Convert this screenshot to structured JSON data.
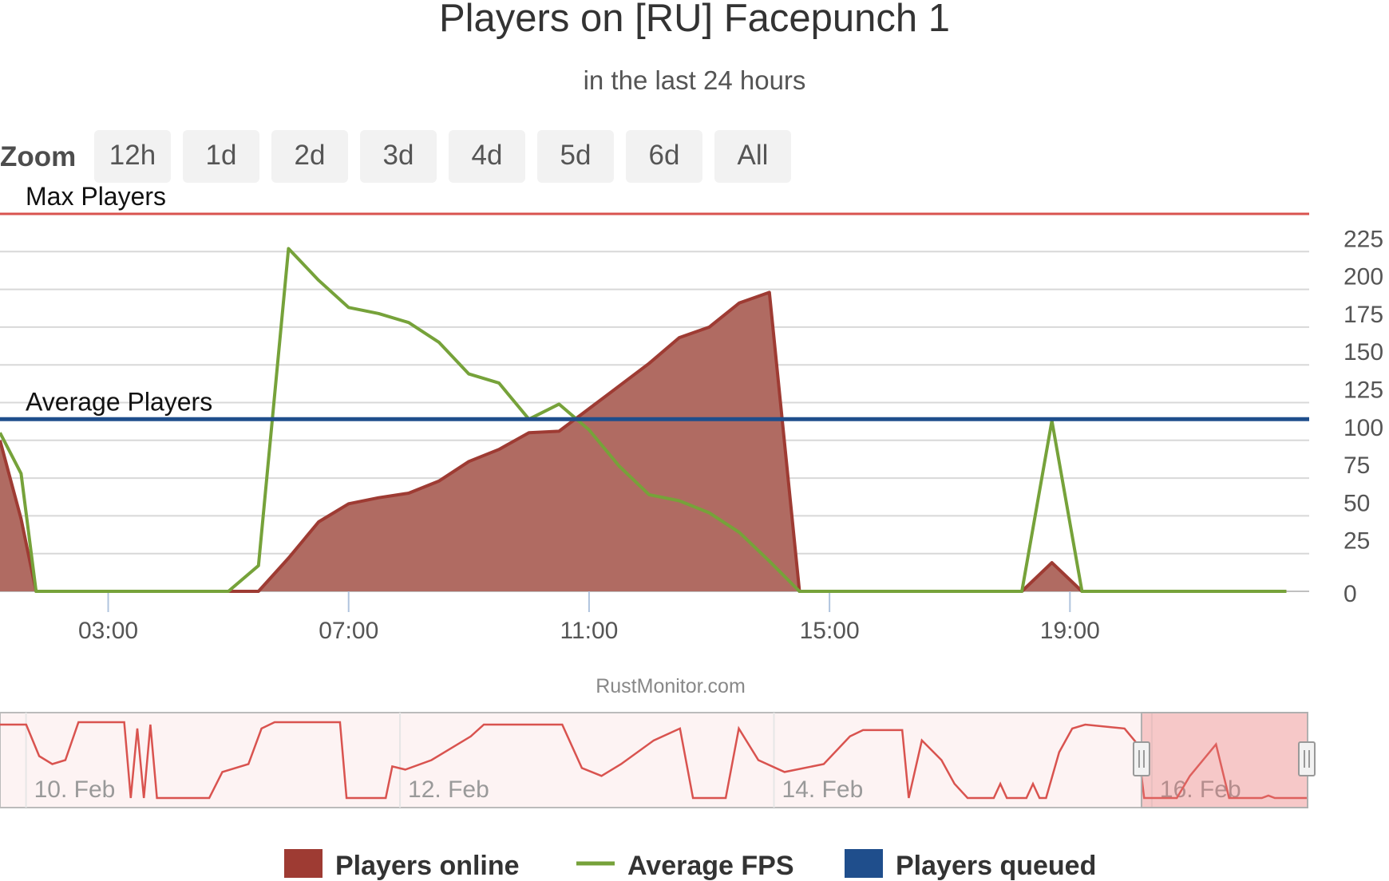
{
  "chart_data": {
    "type": "area",
    "title": "Players on [RU] Facepunch 1",
    "subtitle": "in the last 24 hours",
    "credits": "RustMonitor.com",
    "zoom": {
      "label": "Zoom",
      "buttons": [
        "12h",
        "1d",
        "2d",
        "3d",
        "4d",
        "5d",
        "6d",
        "All"
      ]
    },
    "x_axis": {
      "min_hours": 1.2,
      "max_hours": 22.98,
      "tick_hours": [
        3,
        7,
        11,
        15,
        19
      ],
      "ticks": [
        "03:00",
        "07:00",
        "11:00",
        "15:00",
        "19:00"
      ]
    },
    "y_axis": {
      "position": "right",
      "ticks": [
        "0",
        "25",
        "50",
        "75",
        "100",
        "125",
        "150",
        "175",
        "200",
        "225"
      ],
      "tick_values": [
        0,
        25,
        50,
        75,
        100,
        125,
        150,
        175,
        200,
        225
      ],
      "range": [
        0,
        250
      ]
    },
    "grid": true,
    "plot_lines": [
      {
        "label": "Max Players",
        "value": 250,
        "color": "#d9534f"
      },
      {
        "label": "Average Players",
        "value": 114,
        "color": "#1f4e8c"
      }
    ],
    "series": [
      {
        "name": "Players online",
        "type": "area",
        "color": "#9e3b33",
        "fill": "#b06b62",
        "points": [
          [
            1.2,
            100
          ],
          [
            1.55,
            48
          ],
          [
            1.8,
            0
          ],
          [
            5.0,
            0
          ],
          [
            5.5,
            0
          ],
          [
            6.0,
            22
          ],
          [
            6.5,
            46
          ],
          [
            7.0,
            58
          ],
          [
            7.5,
            62
          ],
          [
            8.0,
            65
          ],
          [
            8.5,
            73
          ],
          [
            9.0,
            86
          ],
          [
            9.5,
            94
          ],
          [
            10.0,
            105
          ],
          [
            10.5,
            106
          ],
          [
            11.0,
            121
          ],
          [
            11.5,
            136
          ],
          [
            12.0,
            151
          ],
          [
            12.5,
            168
          ],
          [
            13.0,
            175
          ],
          [
            13.5,
            191
          ],
          [
            14.0,
            198
          ],
          [
            14.5,
            0
          ],
          [
            18.2,
            0
          ],
          [
            18.7,
            19
          ],
          [
            19.2,
            0
          ],
          [
            22.6,
            0
          ]
        ]
      },
      {
        "name": "Average FPS",
        "type": "line",
        "color": "#76a23a",
        "points": [
          [
            1.2,
            105
          ],
          [
            1.55,
            78
          ],
          [
            1.8,
            0
          ],
          [
            5.0,
            0
          ],
          [
            5.5,
            17
          ],
          [
            6.0,
            227
          ],
          [
            6.5,
            206
          ],
          [
            7.0,
            188
          ],
          [
            7.5,
            184
          ],
          [
            8.0,
            178
          ],
          [
            8.5,
            165
          ],
          [
            9.0,
            144
          ],
          [
            9.5,
            138
          ],
          [
            10.0,
            114
          ],
          [
            10.5,
            124
          ],
          [
            11.0,
            107
          ],
          [
            11.5,
            83
          ],
          [
            12.0,
            64
          ],
          [
            12.5,
            60
          ],
          [
            13.0,
            52
          ],
          [
            13.5,
            39
          ],
          [
            14.0,
            20
          ],
          [
            14.5,
            0
          ],
          [
            18.2,
            0
          ],
          [
            18.7,
            113
          ],
          [
            19.2,
            0
          ],
          [
            22.6,
            0
          ]
        ]
      },
      {
        "name": "Players queued",
        "type": "line",
        "color": "#1f4e8c",
        "points": []
      }
    ],
    "navigator": {
      "labels": [
        "10. Feb",
        "12. Feb",
        "14. Feb",
        "16. Feb"
      ],
      "color": "#d9534f",
      "profile": [
        [
          0,
          0.95
        ],
        [
          0.02,
          0.95
        ],
        [
          0.03,
          0.55
        ],
        [
          0.04,
          0.45
        ],
        [
          0.05,
          0.5
        ],
        [
          0.06,
          0.98
        ],
        [
          0.095,
          0.98
        ],
        [
          0.1,
          0.02
        ],
        [
          0.105,
          0.9
        ],
        [
          0.11,
          0.02
        ],
        [
          0.115,
          0.95
        ],
        [
          0.12,
          0.02
        ],
        [
          0.16,
          0.02
        ],
        [
          0.17,
          0.35
        ],
        [
          0.19,
          0.45
        ],
        [
          0.2,
          0.9
        ],
        [
          0.21,
          0.98
        ],
        [
          0.26,
          0.98
        ],
        [
          0.265,
          0.02
        ],
        [
          0.295,
          0.02
        ],
        [
          0.3,
          0.42
        ],
        [
          0.31,
          0.38
        ],
        [
          0.33,
          0.5
        ],
        [
          0.36,
          0.8
        ],
        [
          0.37,
          0.95
        ],
        [
          0.43,
          0.95
        ],
        [
          0.445,
          0.4
        ],
        [
          0.46,
          0.3
        ],
        [
          0.475,
          0.45
        ],
        [
          0.5,
          0.75
        ],
        [
          0.52,
          0.9
        ],
        [
          0.53,
          0.02
        ],
        [
          0.555,
          0.02
        ],
        [
          0.565,
          0.9
        ],
        [
          0.58,
          0.5
        ],
        [
          0.6,
          0.35
        ],
        [
          0.63,
          0.45
        ],
        [
          0.65,
          0.8
        ],
        [
          0.66,
          0.88
        ],
        [
          0.69,
          0.88
        ],
        [
          0.695,
          0.02
        ],
        [
          0.705,
          0.75
        ],
        [
          0.72,
          0.5
        ],
        [
          0.73,
          0.2
        ],
        [
          0.74,
          0.02
        ],
        [
          0.76,
          0.02
        ],
        [
          0.765,
          0.2
        ],
        [
          0.77,
          0.02
        ],
        [
          0.785,
          0.02
        ],
        [
          0.79,
          0.2
        ],
        [
          0.795,
          0.02
        ],
        [
          0.8,
          0.02
        ],
        [
          0.81,
          0.6
        ],
        [
          0.82,
          0.9
        ],
        [
          0.83,
          0.95
        ],
        [
          0.86,
          0.9
        ],
        [
          0.87,
          0.7
        ],
        [
          0.875,
          0.02
        ],
        [
          0.9,
          0.02
        ],
        [
          0.91,
          0.3
        ],
        [
          0.93,
          0.7
        ],
        [
          0.94,
          0.02
        ],
        [
          0.965,
          0.02
        ],
        [
          0.97,
          0.05
        ],
        [
          0.975,
          0.02
        ],
        [
          1,
          0.02
        ]
      ],
      "selected_range": [
        0.873,
        1.0
      ]
    },
    "legend": {
      "placement": "bottom-center",
      "items": [
        "Players online",
        "Average FPS",
        "Players queued"
      ]
    }
  }
}
